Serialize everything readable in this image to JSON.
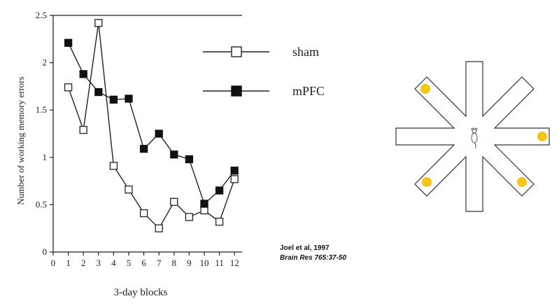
{
  "chart_data": {
    "type": "line",
    "xlabel": "3-day blocks",
    "ylabel": "Number of working memory errors",
    "xlim": [
      0,
      12.5
    ],
    "ylim": [
      0,
      2.5
    ],
    "x_ticks": [
      "0",
      "1",
      "2",
      "3",
      "4",
      "5",
      "6",
      "7",
      "8",
      "9",
      "10",
      "11",
      "12"
    ],
    "y_ticks": [
      "0",
      "0.5",
      "1",
      "1.5",
      "2",
      "2.5"
    ],
    "x": [
      1,
      2,
      3,
      4,
      5,
      6,
      7,
      8,
      9,
      10,
      11,
      12
    ],
    "series": [
      {
        "name": "sham",
        "marker": "open-square",
        "values": [
          1.74,
          1.29,
          2.42,
          0.91,
          0.66,
          0.41,
          0.25,
          0.53,
          0.37,
          0.44,
          0.32,
          0.77
        ]
      },
      {
        "name": "mPFC",
        "marker": "filled-square",
        "values": [
          2.21,
          1.88,
          1.69,
          1.61,
          1.62,
          1.09,
          1.25,
          1.03,
          0.98,
          0.51,
          0.65,
          0.86
        ]
      }
    ],
    "legend_position": "top-right"
  },
  "citation": {
    "authors": "Joel et al, 1997",
    "journal": "Brain Res 765:37-50"
  },
  "maze": {
    "arms": 8,
    "baited_color": "#f5c518",
    "center_icon": "rat-icon"
  }
}
